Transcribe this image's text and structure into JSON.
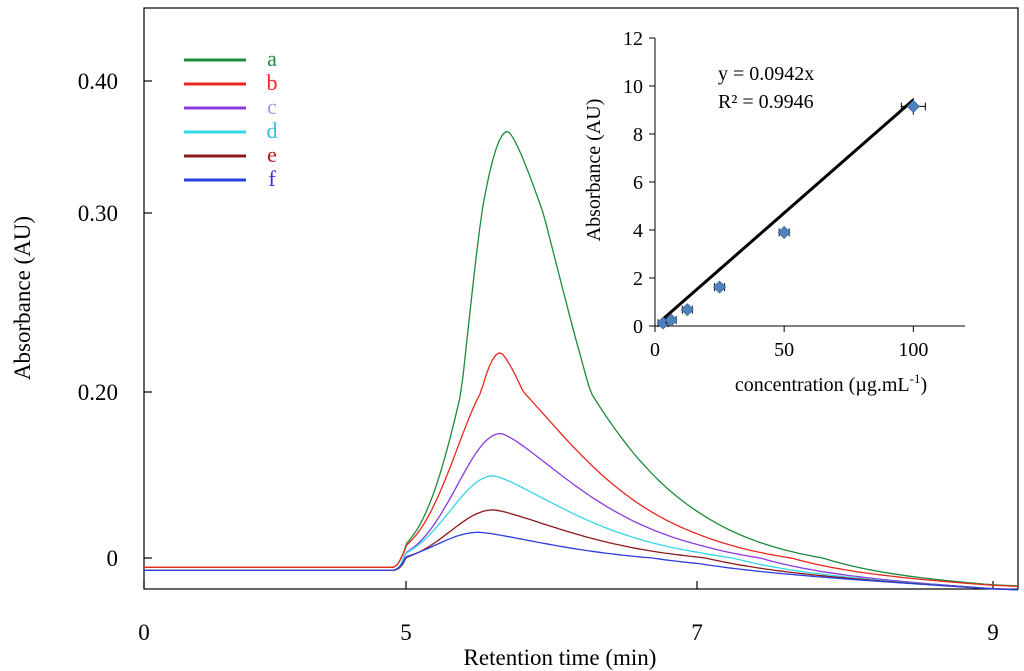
{
  "chart_data": [
    {
      "type": "line",
      "xlabel": "Retention time (min)",
      "ylabel": "Absorbance (AU)",
      "x_ticks": [
        {
          "value": 0,
          "label": "0"
        },
        {
          "value": 5,
          "label": "5"
        },
        {
          "value": 7,
          "label": "7"
        },
        {
          "value": 9,
          "label": "9"
        }
      ],
      "y_ticks": [
        {
          "value": 0,
          "label": "0"
        },
        {
          "value": 0.2,
          "label": "0.20"
        },
        {
          "value": 0.3,
          "label": "0.30"
        },
        {
          "value": 0.4,
          "label": "0.40"
        }
      ],
      "legend_position": "top-left",
      "series": [
        {
          "name": "a",
          "color": "#1a8c3a",
          "baseline": -0.006,
          "peak_x": 5.7,
          "peak_y": 0.362
        },
        {
          "name": "b",
          "color": "#e8281e",
          "baseline": -0.006,
          "peak_x": 5.65,
          "peak_y": 0.222
        },
        {
          "name": "c",
          "color": "#8a3be0",
          "baseline": -0.008,
          "peak_x": 5.65,
          "peak_y": 0.15
        },
        {
          "name": "d",
          "color": "#33d6e6",
          "baseline": -0.008,
          "peak_x": 5.6,
          "peak_y": 0.099
        },
        {
          "name": "e",
          "color": "#8b1a1a",
          "baseline": -0.008,
          "peak_x": 5.6,
          "peak_y": 0.058
        },
        {
          "name": "f",
          "color": "#2b3ee0",
          "baseline": -0.008,
          "peak_x": 5.5,
          "peak_y": 0.031
        }
      ],
      "legend_label_colors": [
        "#1a8c3a",
        "#ff2020",
        "#9a9aee",
        "#33c0e0",
        "#b01818",
        "#3030ee"
      ]
    },
    {
      "type": "scatter",
      "xlabel": "concentration (µg.mL",
      "xlabel_sup": "-1",
      "xlabel_end": ")",
      "ylabel": "Absorbance (AU)",
      "xlim": [
        0,
        120
      ],
      "ylim": [
        0,
        12
      ],
      "x_ticks": [
        0,
        50,
        100
      ],
      "y_ticks": [
        0,
        2,
        4,
        6,
        8,
        10,
        12
      ],
      "points": [
        {
          "x": 3.125,
          "y": 0.12,
          "err": 0.05
        },
        {
          "x": 6.25,
          "y": 0.25,
          "err": 0.05
        },
        {
          "x": 12.5,
          "y": 0.68,
          "err": 0.08
        },
        {
          "x": 25,
          "y": 1.62,
          "err": 0.12
        },
        {
          "x": 50,
          "y": 3.9,
          "err": 0.15
        },
        {
          "x": 100,
          "y": 9.15,
          "err": 0.35
        }
      ],
      "fit": {
        "slope": 0.0942,
        "x_from": 2,
        "x_to": 100
      },
      "equation": "y = 0.0942x",
      "r_squared": "R² = 0.9946",
      "marker_color": "#4f81bd"
    }
  ]
}
